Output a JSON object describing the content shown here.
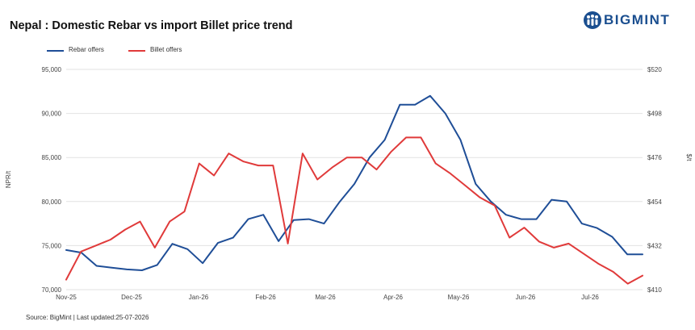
{
  "title": "Nepal : Domestic Rebar vs import Billet price trend",
  "brand": {
    "name": "BIGMINT",
    "color": "#1a4e8f",
    "icon": "people-logo-icon"
  },
  "source": "Source: BigMint | Last updated:25-07-2026",
  "chart_data": {
    "type": "line",
    "title": "Nepal : Domestic Rebar vs import Billet price trend",
    "xlabel": "",
    "ylabel": "NPR/t",
    "y2label": "$/t",
    "ylim": [
      70000,
      95000
    ],
    "y2lim": [
      410,
      520
    ],
    "grid": "horizontal",
    "legend_position": "top-left",
    "x_tick_labels": [
      "Nov-25",
      "Dec-25",
      "Jan-26",
      "Feb-26",
      "Mar-26",
      "Apr-26",
      "May-26",
      "Jun-26",
      "Jul-26"
    ],
    "y_tick_labels": [
      "70,000",
      "75,000",
      "80,000",
      "85,000",
      "90,000",
      "95,000"
    ],
    "y2_tick_labels": [
      "$410",
      "$432",
      "$454",
      "$476",
      "$498",
      "$520"
    ],
    "y_ticks": [
      70000,
      75000,
      80000,
      85000,
      90000,
      95000
    ],
    "y2_ticks": [
      410,
      432,
      454,
      476,
      498,
      520
    ],
    "series": [
      {
        "name": "Rebar offers",
        "color": "#1f4e97",
        "axis": "left",
        "values": [
          74500,
          74200,
          72700,
          72500,
          72300,
          72200,
          72800,
          75200,
          74600,
          73000,
          75300,
          75900,
          78000,
          78500,
          75500,
          77900,
          78000,
          77500,
          79900,
          82000,
          85000,
          87000,
          91000,
          91000,
          92000,
          90000,
          87000,
          82000,
          80000,
          78500,
          78000,
          78000,
          80200,
          80000,
          77500,
          77000,
          76000,
          74000,
          74000
        ]
      },
      {
        "name": "Billet offers",
        "color": "#e03a3a",
        "axis": "right",
        "values": [
          415,
          429,
          432,
          435,
          440,
          444,
          431,
          444,
          449,
          473,
          467,
          478,
          474,
          472,
          472,
          433,
          478,
          465,
          471,
          476,
          476,
          470,
          479,
          486,
          486,
          473,
          468,
          462,
          456,
          452,
          436,
          441,
          434,
          431,
          433,
          428,
          423,
          419,
          413,
          417
        ]
      }
    ]
  }
}
